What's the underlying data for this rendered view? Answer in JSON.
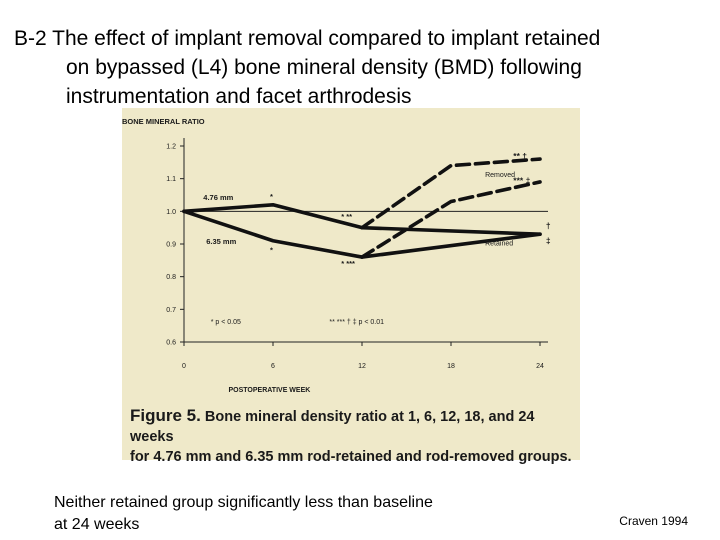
{
  "slide": {
    "title_line1": "B-2  The effect of implant removal compared to implant retained",
    "title_line2": "on bypassed (L4) bone mineral density (BMD) following",
    "title_line3": "instrumentation and facet arthrodesis",
    "footnote_line1": "Neither retained group significantly less than baseline",
    "footnote_line2": "at 24 weeks",
    "citation": "Craven 1994"
  },
  "figure": {
    "caption_label": "Figure 5.",
    "caption_line1": "Bone mineral density ratio at 1, 6, 12, 18, and 24 weeks",
    "caption_line2": "for 4.76 mm and 6.35 mm rod-retained and rod-removed groups.",
    "background_color": "#efe9c9"
  },
  "chart_data": {
    "type": "line",
    "ylabel": "BONE MINERAL RATIO",
    "xlabel": "POSTOPERATIVE WEEK",
    "x_ticks": [
      0,
      6,
      12,
      18,
      24
    ],
    "y_ticks": [
      "1.2",
      "1.1",
      "1.0",
      "0.9",
      "0.8",
      "0.7",
      "0.6"
    ],
    "x_tick_labels": [
      "0",
      "6",
      "12",
      "18",
      "24"
    ],
    "xlim": [
      0,
      24
    ],
    "ylim": [
      0.6,
      1.2
    ],
    "baseline": 1.0,
    "series": [
      {
        "name": "4.76 mm",
        "style": "solid",
        "x": [
          0,
          6,
          12,
          24
        ],
        "y": [
          1.0,
          1.02,
          0.95,
          0.93
        ]
      },
      {
        "name": "6.35 mm",
        "style": "solid",
        "x": [
          0,
          6,
          12,
          24
        ],
        "y": [
          1.0,
          0.91,
          0.86,
          0.93
        ]
      },
      {
        "name": "Removed (4.76 mm)",
        "style": "dashed",
        "x": [
          12,
          18,
          24
        ],
        "y": [
          0.95,
          1.14,
          1.16
        ]
      },
      {
        "name": "Removed (6.35 mm)",
        "style": "dashed",
        "x": [
          12,
          18,
          24
        ],
        "y": [
          0.86,
          1.03,
          1.09
        ]
      }
    ],
    "group_labels": {
      "removed": "Removed",
      "retained": "Retained"
    },
    "significance_marks": {
      "wk6_476": "*",
      "wk6_635": "*",
      "wk12_476": "* **",
      "wk12_635": "* ***",
      "wk24_removed_476": "** †",
      "wk24_removed_635": "*** ‡",
      "wk24_retained_476": "†",
      "wk24_retained_635": "‡"
    },
    "legend_p05": "* p < 0.05",
    "legend_p01": "** *** † ‡ p < 0.01",
    "colors": {
      "line": "#111111",
      "axis": "#222222",
      "text": "#1a1a1a"
    }
  }
}
